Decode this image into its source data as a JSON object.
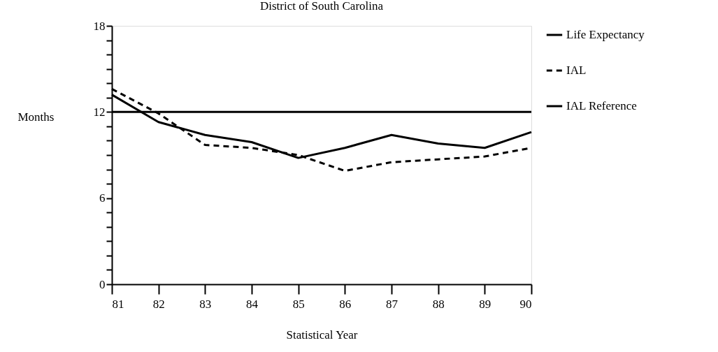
{
  "chart_data": {
    "type": "line",
    "title": "District of South Carolina",
    "xlabel": "Statistical Year",
    "ylabel": "Months",
    "x": [
      81,
      82,
      83,
      84,
      85,
      86,
      87,
      88,
      89,
      90
    ],
    "series": [
      {
        "name": "Life Expectancy",
        "color": "#000000",
        "line_style": "solid",
        "values": [
          13.2,
          11.3,
          10.4,
          9.9,
          8.8,
          9.5,
          10.4,
          9.8,
          9.5,
          10.6
        ]
      },
      {
        "name": "IAL",
        "color": "#000000",
        "line_style": "dashed",
        "values": [
          13.6,
          11.9,
          9.7,
          9.5,
          9.0,
          7.9,
          8.5,
          8.7,
          8.9,
          9.5
        ]
      },
      {
        "name": "IAL Reference",
        "color": "#000000",
        "line_style": "solid",
        "values": [
          12,
          12,
          12,
          12,
          12,
          12,
          12,
          12,
          12,
          12
        ]
      }
    ],
    "xlim": [
      81,
      90
    ],
    "xticks": [
      81,
      82,
      83,
      84,
      85,
      86,
      87,
      88,
      89,
      90
    ],
    "ylim": [
      0,
      18
    ],
    "yticks": [
      0,
      {
        "value": 1,
        "label": null
      },
      {
        "value": 2,
        "label": null
      },
      {
        "value": 3,
        "label": null
      },
      {
        "value": 4,
        "label": null
      },
      {
        "value": 5,
        "label": null
      },
      6,
      {
        "value": 7,
        "label": null
      },
      {
        "value": 8,
        "label": null
      },
      {
        "value": 9,
        "label": null
      },
      {
        "value": 10,
        "label": null
      },
      {
        "value": 11,
        "label": null
      },
      12,
      {
        "value": 13,
        "label": null
      },
      {
        "value": 14,
        "label": null
      },
      {
        "value": 15,
        "label": null
      },
      {
        "value": 16,
        "label": null
      },
      {
        "value": 17,
        "label": null
      },
      18
    ],
    "grid": false,
    "legend": "right",
    "marker": "none"
  }
}
